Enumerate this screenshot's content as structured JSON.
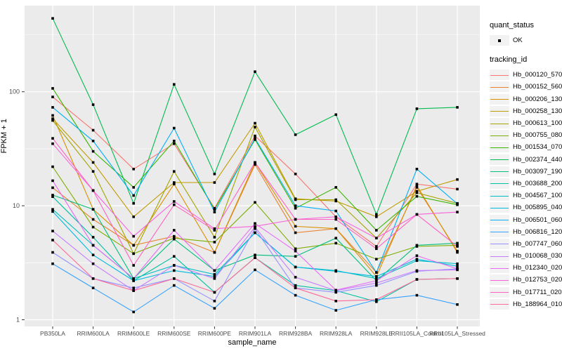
{
  "figure": {
    "background": "#FFFFFF",
    "panel_color": "#EBEBEB",
    "gridline_color": "#FFFFFF",
    "tick_label_color": "#4D4D4D",
    "tick_mark_color": "#333333",
    "point_color": "#000000",
    "legend_key_background": "#F2F2F2"
  },
  "legend": {
    "quant_status_title": "quant_status",
    "quant_status_value": "OK",
    "tracking_id_title": "tracking_id"
  },
  "chart_data": {
    "type": "line",
    "title": "",
    "xlabel": "sample_name",
    "ylabel": "FPKM + 1",
    "y_scale": "log10",
    "ylim": [
      0.87,
      570
    ],
    "y_ticks": [
      1,
      10,
      100
    ],
    "y_minor_ticks": [
      3.162,
      31.62,
      316.2
    ],
    "grid": true,
    "legend_position": "right",
    "point_shape": "square",
    "point_status_label": "OK",
    "categories": [
      "PB350LA",
      "RRIM600LA",
      "RRIM600LE",
      "RRIM600SE",
      "RRIM600PE",
      "RRIM901LA",
      "RRIM928BA",
      "RRIM928LA",
      "RRIM928LE",
      "RRII105LA_Control",
      "RRII105LA_Stressed"
    ],
    "series": [
      {
        "name": "Hb_000120_570",
        "color": "#F8766D",
        "values": [
          90,
          46,
          21,
          35,
          9.5,
          41,
          19,
          8.0,
          4.4,
          15.5,
          14
        ]
      },
      {
        "name": "Hb_000152_560",
        "color": "#EA8331",
        "values": [
          14.4,
          7.6,
          4.5,
          5.4,
          3.9,
          23,
          5.8,
          6.3,
          2.6,
          14.5,
          4.0
        ]
      },
      {
        "name": "Hb_000206_130",
        "color": "#D89000",
        "values": [
          62,
          9.3,
          4.5,
          15.5,
          3.9,
          24,
          6.6,
          6.3,
          2.4,
          15,
          3.9
        ]
      },
      {
        "name": "Hb_000258_130",
        "color": "#C09B00",
        "values": [
          58,
          24,
          8.0,
          16,
          16,
          53,
          11.5,
          11,
          8.0,
          13.4,
          17
        ]
      },
      {
        "name": "Hb_000613_100",
        "color": "#A3A500",
        "values": [
          56,
          20,
          3.8,
          20,
          5.3,
          49,
          11.3,
          11.3,
          5.2,
          13,
          10.5
        ]
      },
      {
        "name": "Hb_000755_080",
        "color": "#7CAE00",
        "values": [
          22,
          6.5,
          3.8,
          5.2,
          4.8,
          10.7,
          4.2,
          4.7,
          3.4,
          4.4,
          4.5
        ]
      },
      {
        "name": "Hb_001534_070",
        "color": "#39B600",
        "values": [
          107,
          30,
          14.5,
          37,
          9.3,
          38,
          9.5,
          14.5,
          6.1,
          12.1,
          10.2
        ]
      },
      {
        "name": "Hb_002374_440",
        "color": "#00BB4E",
        "values": [
          440,
          77,
          10.5,
          116,
          19,
          150,
          42,
          63,
          8.4,
          71,
          73
        ]
      },
      {
        "name": "Hb_003097_190",
        "color": "#00BF7D",
        "values": [
          12.4,
          9.3,
          2.3,
          5.1,
          2.7,
          3.7,
          3.6,
          5.2,
          2.2,
          4.5,
          4.7
        ]
      },
      {
        "name": "Hb_003688_200",
        "color": "#00C1A3",
        "values": [
          12,
          5.3,
          2.2,
          3.6,
          1.74,
          3.5,
          2.0,
          1.8,
          1.44,
          2.26,
          2.3
        ]
      },
      {
        "name": "Hb_004567_100",
        "color": "#00BFC4",
        "values": [
          9.3,
          4.5,
          2.3,
          3.0,
          2.5,
          5.8,
          2.9,
          2.7,
          2.3,
          3.3,
          3.1
        ]
      },
      {
        "name": "Hb_005895_040",
        "color": "#00BADE",
        "values": [
          8.9,
          3.7,
          2.2,
          2.7,
          2.4,
          5.8,
          2.9,
          2.66,
          2.4,
          3.4,
          2.95
        ]
      },
      {
        "name": "Hb_006501_060",
        "color": "#00B0F6",
        "values": [
          73,
          37,
          12.3,
          48,
          8.8,
          39,
          10,
          9.0,
          2.6,
          21,
          10.4
        ]
      },
      {
        "name": "Hb_006816_120",
        "color": "#35A2FF",
        "values": [
          3.1,
          1.9,
          1.17,
          2.0,
          1.26,
          2.74,
          1.64,
          1.21,
          1.5,
          1.64,
          1.36
        ]
      },
      {
        "name": "Hb_007747_060",
        "color": "#9590FF",
        "values": [
          3.9,
          2.3,
          1.9,
          2.3,
          1.46,
          6.3,
          1.9,
          1.74,
          2.0,
          2.66,
          2.8
        ]
      },
      {
        "name": "Hb_010068_030",
        "color": "#C77CFF",
        "values": [
          6.0,
          3.1,
          1.8,
          3.0,
          2.3,
          6.5,
          2.36,
          1.8,
          2.1,
          2.7,
          2.74
        ]
      },
      {
        "name": "Hb_012340_020",
        "color": "#E76BF3",
        "values": [
          16.6,
          4.5,
          2.3,
          6.1,
          2.7,
          7.0,
          4.0,
          1.82,
          2.2,
          3.65,
          2.8
        ]
      },
      {
        "name": "Hb_012753_020",
        "color": "#FA62DB",
        "values": [
          35,
          13.6,
          5.4,
          10.9,
          6.3,
          6.6,
          7.6,
          8.0,
          5.2,
          8.4,
          8.8
        ]
      },
      {
        "name": "Hb_017711_020",
        "color": "#FF61C3",
        "values": [
          39,
          13.6,
          3.0,
          10.2,
          6.1,
          24,
          7.6,
          7.6,
          4.2,
          8.4,
          4.4
        ]
      },
      {
        "name": "Hb_188964_010",
        "color": "#FF6A98",
        "values": [
          5.0,
          2.3,
          1.8,
          2.3,
          1.74,
          3.5,
          1.9,
          1.46,
          1.5,
          2.26,
          2.3
        ]
      }
    ]
  }
}
